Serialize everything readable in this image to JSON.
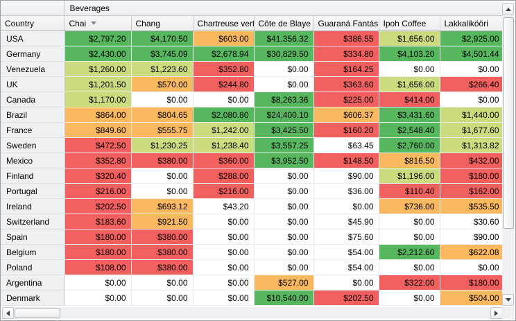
{
  "pivot": {
    "group_header": "Beverages",
    "row_field_header": "Country",
    "sorted_column": "Chai",
    "sort_direction": "descending",
    "columns": [
      "Chai",
      "Chang",
      "Chartreuse vert",
      "Côte de Blaye",
      "Guaraná Fantás",
      "Ipoh Coffee",
      "Lakkalikööri"
    ],
    "rows": [
      {
        "label": "USA",
        "values": [
          "$2,797.20",
          "$4,170.50",
          "$603.00",
          "$41,356.32",
          "$386.55",
          "$1,656.00",
          "$2,925.00"
        ],
        "colors": [
          "green",
          "green",
          "orange",
          "green",
          "red",
          "lime",
          "green"
        ]
      },
      {
        "label": "Germany",
        "values": [
          "$2,430.00",
          "$3,745.09",
          "$2,678.94",
          "$30,829.50",
          "$334.80",
          "$4,103.20",
          "$4,501.44"
        ],
        "colors": [
          "green",
          "green",
          "green",
          "green",
          "red",
          "green",
          "green"
        ]
      },
      {
        "label": "Venezuela",
        "values": [
          "$1,260.00",
          "$1,223.60",
          "$352.80",
          "$0.00",
          "$164.25",
          "$0.00",
          "$0.00"
        ],
        "colors": [
          "lime",
          "lime",
          "red",
          "white",
          "red",
          "white",
          "white"
        ]
      },
      {
        "label": "UK",
        "values": [
          "$1,201.50",
          "$570.00",
          "$244.80",
          "$0.00",
          "$363.60",
          "$1,656.00",
          "$266.40"
        ],
        "colors": [
          "lime",
          "orange",
          "red",
          "white",
          "red",
          "lime",
          "red"
        ]
      },
      {
        "label": "Canada",
        "values": [
          "$1,170.00",
          "$0.00",
          "$0.00",
          "$8,263.36",
          "$225.00",
          "$414.00",
          "$0.00"
        ],
        "colors": [
          "lime",
          "white",
          "white",
          "green",
          "red",
          "red",
          "white"
        ]
      },
      {
        "label": "Brazil",
        "values": [
          "$864.00",
          "$804.65",
          "$2,080.80",
          "$24,400.10",
          "$606.37",
          "$3,431.60",
          "$1,440.00"
        ],
        "colors": [
          "orange",
          "orange",
          "green",
          "green",
          "orange",
          "green",
          "lime"
        ]
      },
      {
        "label": "France",
        "values": [
          "$849.60",
          "$555.75",
          "$1,242.00",
          "$3,425.50",
          "$160.20",
          "$2,548.40",
          "$1,677.60"
        ],
        "colors": [
          "orange",
          "orange",
          "lime",
          "green",
          "red",
          "green",
          "lime"
        ]
      },
      {
        "label": "Sweden",
        "values": [
          "$472.50",
          "$1,230.25",
          "$1,238.40",
          "$3,557.25",
          "$63.45",
          "$2,760.00",
          "$1,313.82"
        ],
        "colors": [
          "red",
          "lime",
          "lime",
          "green",
          "white",
          "green",
          "lime"
        ]
      },
      {
        "label": "Mexico",
        "values": [
          "$352.80",
          "$380.00",
          "$360.00",
          "$3,952.50",
          "$148.50",
          "$816.50",
          "$432.00"
        ],
        "colors": [
          "red",
          "red",
          "red",
          "green",
          "red",
          "orange",
          "red"
        ]
      },
      {
        "label": "Finland",
        "values": [
          "$320.40",
          "$0.00",
          "$288.00",
          "$0.00",
          "$90.00",
          "$1,196.00",
          "$180.00"
        ],
        "colors": [
          "red",
          "white",
          "red",
          "white",
          "white",
          "lime",
          "red"
        ]
      },
      {
        "label": "Portugal",
        "values": [
          "$216.00",
          "$0.00",
          "$216.00",
          "$0.00",
          "$36.00",
          "$110.40",
          "$162.00"
        ],
        "colors": [
          "red",
          "white",
          "red",
          "white",
          "white",
          "red",
          "red"
        ]
      },
      {
        "label": "Ireland",
        "values": [
          "$202.50",
          "$693.12",
          "$43.20",
          "$0.00",
          "$0.00",
          "$736.00",
          "$535.50"
        ],
        "colors": [
          "red",
          "orange",
          "white",
          "white",
          "white",
          "orange",
          "orange"
        ]
      },
      {
        "label": "Switzerland",
        "values": [
          "$183.60",
          "$921.50",
          "$0.00",
          "$0.00",
          "$45.90",
          "$0.00",
          "$30.60"
        ],
        "colors": [
          "red",
          "orange",
          "white",
          "white",
          "white",
          "white",
          "white"
        ]
      },
      {
        "label": "Spain",
        "values": [
          "$180.00",
          "$380.00",
          "$0.00",
          "$0.00",
          "$75.60",
          "$0.00",
          "$90.00"
        ],
        "colors": [
          "red",
          "red",
          "white",
          "white",
          "white",
          "white",
          "white"
        ]
      },
      {
        "label": "Belgium",
        "values": [
          "$180.00",
          "$380.00",
          "$0.00",
          "$0.00",
          "$54.00",
          "$2,212.60",
          "$622.08"
        ],
        "colors": [
          "red",
          "red",
          "white",
          "white",
          "white",
          "green",
          "orange"
        ]
      },
      {
        "label": "Poland",
        "values": [
          "$108.00",
          "$380.00",
          "$0.00",
          "$0.00",
          "$54.00",
          "$0.00",
          "$0.00"
        ],
        "colors": [
          "red",
          "red",
          "white",
          "white",
          "white",
          "white",
          "white"
        ]
      },
      {
        "label": "Argentina",
        "values": [
          "$0.00",
          "$0.00",
          "$0.00",
          "$527.00",
          "$0.00",
          "$322.00",
          "$180.00"
        ],
        "colors": [
          "white",
          "white",
          "white",
          "orange",
          "white",
          "red",
          "red"
        ]
      },
      {
        "label": "Denmark",
        "values": [
          "$0.00",
          "$0.00",
          "$0.00",
          "$10,540.00",
          "$202.50",
          "$0.00",
          "$504.00"
        ],
        "colors": [
          "white",
          "white",
          "white",
          "green",
          "red",
          "white",
          "orange"
        ]
      }
    ]
  },
  "palette": {
    "green": "#57b75e",
    "lime": "#cadc7d",
    "orange": "#fbb95f",
    "red": "#f15f5f",
    "white": "#ffffff"
  },
  "icons": {
    "sort_descending": "triangle-down",
    "scroll_up": "triangle-up",
    "scroll_down": "triangle-down",
    "scroll_left": "triangle-left",
    "scroll_right": "triangle-right"
  }
}
